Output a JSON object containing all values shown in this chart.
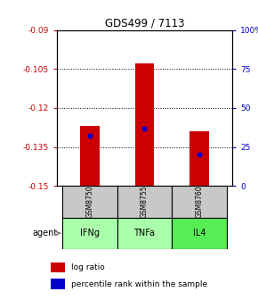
{
  "title": "GDS499 / 7113",
  "samples": [
    "GSM8750",
    "GSM8755",
    "GSM8760"
  ],
  "agents": [
    "IFNg",
    "TNFa",
    "IL4"
  ],
  "log_ratios": [
    -0.127,
    -0.103,
    -0.129
  ],
  "baseline": -0.15,
  "percentile_ranks": [
    0.32,
    0.37,
    0.2
  ],
  "ylim_left": [
    -0.15,
    -0.09
  ],
  "ylim_right": [
    0,
    100
  ],
  "yticks_left": [
    -0.15,
    -0.135,
    -0.12,
    -0.105,
    -0.09
  ],
  "yticks_right": [
    0,
    25,
    50,
    75,
    100
  ],
  "ytick_labels_left": [
    "-0.15",
    "-0.135",
    "-0.12",
    "-0.105",
    "-0.09"
  ],
  "ytick_labels_right": [
    "0",
    "25",
    "50",
    "75",
    "100%"
  ],
  "bar_color": "#cc0000",
  "blue_color": "#0000cc",
  "sample_bg": "#c8c8c8",
  "agent_colors": [
    "#aaffaa",
    "#aaffaa",
    "#55ee55"
  ],
  "title_color": "#000000",
  "left_axis_color": "#cc0000",
  "right_axis_color": "#0000cc",
  "bar_width": 0.35,
  "legend_items": [
    "log ratio",
    "percentile rank within the sample"
  ]
}
